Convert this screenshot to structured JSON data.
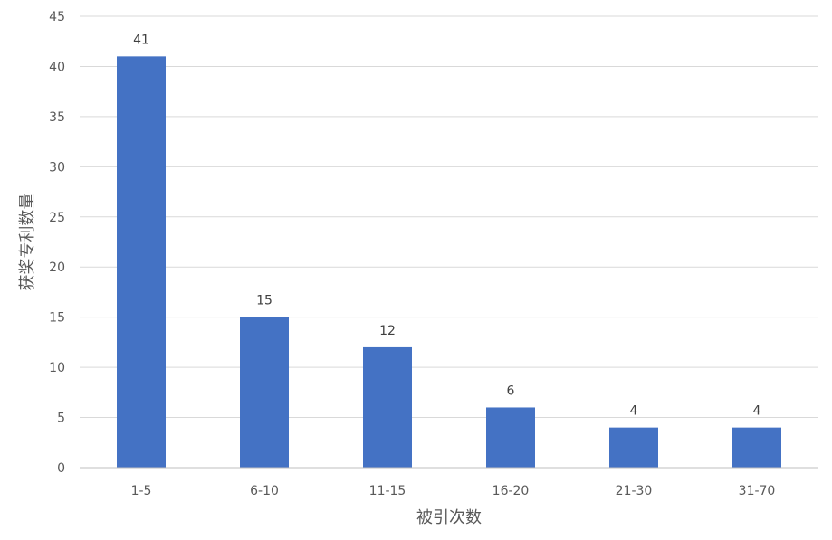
{
  "chart_data": {
    "type": "bar",
    "categories": [
      "1-5",
      "6-10",
      "11-15",
      "16-20",
      "21-30",
      "31-70"
    ],
    "values": [
      41,
      15,
      12,
      6,
      4,
      4
    ],
    "title": "",
    "xlabel": "被引次数",
    "ylabel": "获奖专利数量",
    "ylim": [
      0,
      45
    ],
    "yticks": [
      0,
      5,
      10,
      15,
      20,
      25,
      30,
      35,
      40,
      45
    ],
    "grid": true,
    "legend": "none",
    "bar_color": "#4472c4",
    "data_labels": true
  }
}
